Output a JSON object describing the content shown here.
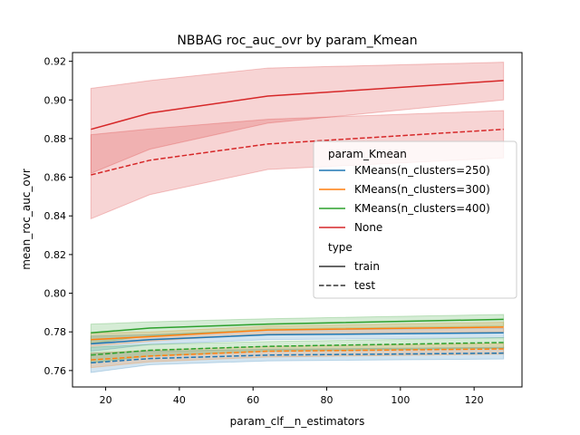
{
  "chart_data": {
    "type": "line",
    "title": "NBBAG roc_auc_ovr by param_Kmean",
    "xlabel": "param_clf__n_estimators",
    "ylabel": "mean_roc_auc_ovr",
    "xlim": [
      11,
      133
    ],
    "ylim": [
      0.7515,
      0.9245
    ],
    "xticks": [
      20,
      40,
      60,
      80,
      100,
      120
    ],
    "yticks": [
      0.76,
      0.78,
      0.8,
      0.82,
      0.84,
      0.86,
      0.88,
      0.9,
      0.92
    ],
    "ytick_labels": [
      "0.76",
      "0.78",
      "0.80",
      "0.82",
      "0.84",
      "0.86",
      "0.88",
      "0.90",
      "0.92"
    ],
    "grid": false,
    "x": [
      16,
      32,
      64,
      128
    ],
    "series": [
      {
        "name": "KMeans(n_clusters=250)",
        "type": "train",
        "color": "#1f77b4",
        "values": [
          0.7738,
          0.776,
          0.7785,
          0.7795
        ],
        "lower": [
          0.77,
          0.7735,
          0.776,
          0.777
        ],
        "upper": [
          0.7778,
          0.7785,
          0.7808,
          0.782
        ]
      },
      {
        "name": "KMeans(n_clusters=300)",
        "type": "train",
        "color": "#ff7f0e",
        "values": [
          0.776,
          0.7775,
          0.781,
          0.7825
        ],
        "lower": [
          0.7725,
          0.7752,
          0.779,
          0.78
        ],
        "upper": [
          0.7795,
          0.78,
          0.783,
          0.785
        ]
      },
      {
        "name": "KMeans(n_clusters=400)",
        "type": "train",
        "color": "#2ca02c",
        "values": [
          0.7795,
          0.782,
          0.784,
          0.7865
        ],
        "lower": [
          0.774,
          0.778,
          0.7815,
          0.783
        ],
        "upper": [
          0.784,
          0.7852,
          0.7868,
          0.789
        ]
      },
      {
        "name": "None",
        "type": "train",
        "color": "#d62728",
        "values": [
          0.8848,
          0.8932,
          0.902,
          0.91
        ],
        "lower": [
          0.862,
          0.8745,
          0.888,
          0.9
        ],
        "upper": [
          0.906,
          0.91,
          0.9165,
          0.9195
        ]
      },
      {
        "name": "KMeans(n_clusters=250)",
        "type": "test",
        "color": "#1f77b4",
        "values": [
          0.764,
          0.7662,
          0.768,
          0.769
        ],
        "lower": [
          0.759,
          0.763,
          0.765,
          0.766
        ],
        "upper": [
          0.769,
          0.77,
          0.771,
          0.772
        ]
      },
      {
        "name": "KMeans(n_clusters=300)",
        "type": "test",
        "color": "#ff7f0e",
        "values": [
          0.7655,
          0.7675,
          0.77,
          0.7712
        ],
        "lower": [
          0.7615,
          0.7645,
          0.767,
          0.7685
        ],
        "upper": [
          0.769,
          0.7705,
          0.7725,
          0.774
        ]
      },
      {
        "name": "KMeans(n_clusters=400)",
        "type": "test",
        "color": "#2ca02c",
        "values": [
          0.768,
          0.7705,
          0.7725,
          0.7745
        ],
        "lower": [
          0.764,
          0.7675,
          0.77,
          0.7715
        ],
        "upper": [
          0.772,
          0.7735,
          0.775,
          0.777
        ]
      },
      {
        "name": "None",
        "type": "test",
        "color": "#d62728",
        "values": [
          0.8612,
          0.8688,
          0.8772,
          0.8848
        ],
        "lower": [
          0.8385,
          0.851,
          0.864,
          0.87
        ],
        "upper": [
          0.882,
          0.885,
          0.89,
          0.8945
        ]
      }
    ],
    "legend": {
      "placement": "center-right",
      "hue_title": "param_Kmean",
      "hue_entries": [
        {
          "label": "KMeans(n_clusters=250)",
          "color": "#1f77b4"
        },
        {
          "label": "KMeans(n_clusters=300)",
          "color": "#ff7f0e"
        },
        {
          "label": "KMeans(n_clusters=400)",
          "color": "#2ca02c"
        },
        {
          "label": "None",
          "color": "#d62728"
        }
      ],
      "style_title": "type",
      "style_entries": [
        {
          "label": "train",
          "dash": "solid"
        },
        {
          "label": "test",
          "dash": "dashed"
        }
      ]
    }
  }
}
